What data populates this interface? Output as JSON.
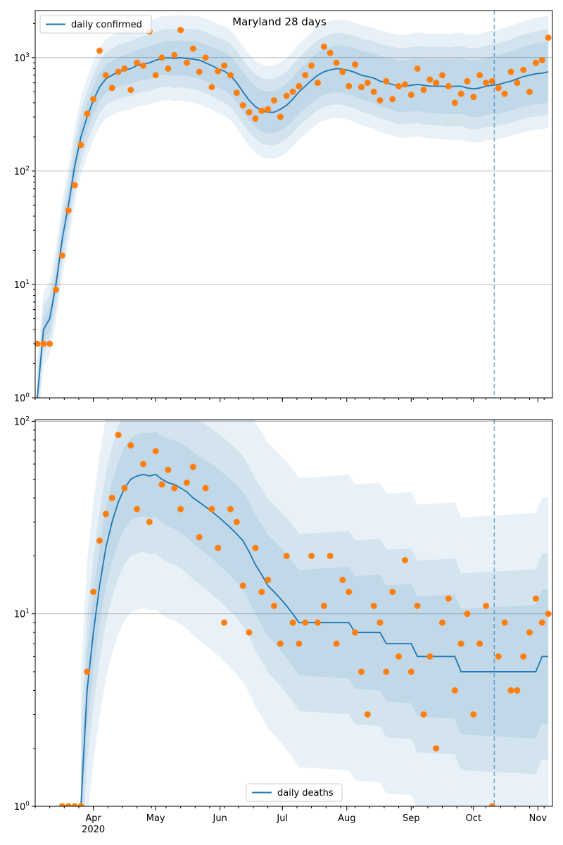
{
  "title": "Maryland 28 days",
  "colors": {
    "line": "#1f77b4",
    "points": "#ff7f0e",
    "band": "#1f77b4",
    "grid": "#b0b0b0"
  },
  "chart_data": [
    {
      "type": "line",
      "scale_y": "log",
      "ylim": [
        1,
        2600
      ],
      "xlim": [
        "2020-03-04",
        "2020-11-08"
      ],
      "grid": "y-major",
      "legend": "top-left",
      "legend_label": "daily confirmed",
      "vline_date": "2020-10-11",
      "y_ticks": [
        {
          "base": "10",
          "exp": "0",
          "value": 1
        },
        {
          "base": "10",
          "exp": "1",
          "value": 10
        },
        {
          "base": "10",
          "exp": "2",
          "value": 100
        },
        {
          "base": "10",
          "exp": "3",
          "value": 1000
        }
      ],
      "band_factors": [
        1.25,
        1.6,
        2.1
      ],
      "dates": [
        "2020-03-05",
        "2020-03-08",
        "2020-03-11",
        "2020-03-14",
        "2020-03-17",
        "2020-03-20",
        "2020-03-23",
        "2020-03-26",
        "2020-03-29",
        "2020-04-01",
        "2020-04-04",
        "2020-04-07",
        "2020-04-10",
        "2020-04-13",
        "2020-04-16",
        "2020-04-19",
        "2020-04-22",
        "2020-04-25",
        "2020-04-28",
        "2020-05-01",
        "2020-05-04",
        "2020-05-07",
        "2020-05-10",
        "2020-05-13",
        "2020-05-16",
        "2020-05-19",
        "2020-05-22",
        "2020-05-25",
        "2020-05-28",
        "2020-05-31",
        "2020-06-03",
        "2020-06-06",
        "2020-06-09",
        "2020-06-12",
        "2020-06-15",
        "2020-06-18",
        "2020-06-21",
        "2020-06-24",
        "2020-06-27",
        "2020-06-30",
        "2020-07-03",
        "2020-07-06",
        "2020-07-09",
        "2020-07-12",
        "2020-07-15",
        "2020-07-18",
        "2020-07-21",
        "2020-07-24",
        "2020-07-27",
        "2020-07-30",
        "2020-08-02",
        "2020-08-05",
        "2020-08-08",
        "2020-08-11",
        "2020-08-14",
        "2020-08-17",
        "2020-08-20",
        "2020-08-23",
        "2020-08-26",
        "2020-08-29",
        "2020-09-01",
        "2020-09-04",
        "2020-09-07",
        "2020-09-10",
        "2020-09-13",
        "2020-09-16",
        "2020-09-19",
        "2020-09-22",
        "2020-09-25",
        "2020-09-28",
        "2020-10-01",
        "2020-10-04",
        "2020-10-07",
        "2020-10-10",
        "2020-10-13",
        "2020-10-16",
        "2020-10-19",
        "2020-10-22",
        "2020-10-25",
        "2020-10-28",
        "2020-10-31",
        "2020-11-03",
        "2020-11-06"
      ],
      "median": [
        1,
        4,
        5,
        10,
        25,
        50,
        110,
        200,
        300,
        420,
        550,
        650,
        700,
        750,
        780,
        800,
        850,
        880,
        900,
        950,
        980,
        1000,
        980,
        1000,
        980,
        970,
        950,
        900,
        850,
        800,
        760,
        700,
        600,
        500,
        420,
        370,
        340,
        330,
        330,
        350,
        380,
        430,
        500,
        560,
        630,
        700,
        750,
        780,
        800,
        790,
        770,
        740,
        700,
        680,
        660,
        620,
        600,
        580,
        560,
        560,
        570,
        580,
        570,
        560,
        560,
        560,
        550,
        560,
        560,
        540,
        530,
        540,
        560,
        570,
        580,
        600,
        620,
        650,
        680,
        700,
        720,
        730,
        750
      ],
      "observed": [
        3,
        3,
        3,
        9,
        18,
        45,
        75,
        170,
        320,
        430,
        1150,
        700,
        540,
        750,
        800,
        520,
        900,
        850,
        1700,
        700,
        1000,
        800,
        1050,
        1750,
        900,
        1200,
        750,
        1000,
        550,
        760,
        850,
        700,
        490,
        380,
        330,
        290,
        340,
        350,
        420,
        300,
        460,
        500,
        560,
        700,
        850,
        600,
        1250,
        1100,
        900,
        750,
        560,
        870,
        550,
        600,
        500,
        420,
        620,
        430,
        560,
        580,
        470,
        800,
        520,
        640,
        600,
        700,
        560,
        400,
        480,
        620,
        450,
        700,
        600,
        620,
        540,
        480,
        750,
        600,
        780,
        500,
        900,
        950,
        1500
      ]
    },
    {
      "type": "line",
      "scale_y": "log",
      "ylim": [
        1,
        102
      ],
      "xlim": [
        "2020-03-04",
        "2020-11-08"
      ],
      "grid": "y-major",
      "legend": "bottom-center",
      "legend_label": "daily deaths",
      "vline_date": "2020-10-11",
      "y_ticks": [
        {
          "base": "10",
          "exp": "0",
          "value": 1
        },
        {
          "base": "10",
          "exp": "1",
          "value": 10
        },
        {
          "base": "10",
          "exp": "2",
          "value": 100
        }
      ],
      "x_ticks": [
        {
          "label": "Apr",
          "date": "2020-04-01"
        },
        {
          "label": "May",
          "date": "2020-05-01"
        },
        {
          "label": "Jun",
          "date": "2020-06-01"
        },
        {
          "label": "Jul",
          "date": "2020-07-01"
        },
        {
          "label": "Aug",
          "date": "2020-08-01"
        },
        {
          "label": "Sep",
          "date": "2020-09-01"
        },
        {
          "label": "Oct",
          "date": "2020-10-01"
        },
        {
          "label": "Nov",
          "date": "2020-11-01"
        }
      ],
      "x_year_label": "2020",
      "band_factors": [
        1.5,
        2.3,
        4.5
      ],
      "median": [
        null,
        null,
        null,
        null,
        null,
        null,
        null,
        1,
        4,
        8,
        14,
        22,
        30,
        38,
        45,
        50,
        52,
        53,
        52,
        53,
        50,
        48,
        47,
        45,
        43,
        40,
        38,
        36,
        34,
        32,
        30,
        28,
        26,
        24,
        21,
        18,
        16,
        14,
        13,
        12,
        11,
        10,
        9,
        9,
        9,
        9,
        9,
        9,
        9,
        9,
        9,
        8,
        8,
        8,
        8,
        8,
        7,
        7,
        7,
        7,
        7,
        6,
        6,
        6,
        6,
        6,
        6,
        6,
        5,
        5,
        5,
        5,
        5,
        5,
        5,
        5,
        5,
        5,
        5,
        5,
        5,
        6,
        6
      ],
      "observed": [
        null,
        null,
        null,
        null,
        1,
        1,
        1,
        1,
        5,
        13,
        24,
        33,
        40,
        85,
        45,
        75,
        35,
        60,
        30,
        70,
        47,
        56,
        45,
        35,
        48,
        58,
        25,
        45,
        35,
        22,
        9,
        35,
        30,
        14,
        8,
        22,
        13,
        15,
        11,
        7,
        20,
        9,
        7,
        9,
        20,
        9,
        11,
        20,
        7,
        15,
        13,
        8,
        5,
        3,
        11,
        9,
        5,
        13,
        6,
        19,
        5,
        11,
        3,
        6,
        2,
        9,
        12,
        4,
        7,
        10,
        3,
        7,
        11,
        1,
        6,
        9,
        4,
        4,
        6,
        8,
        12,
        9,
        10
      ]
    }
  ]
}
